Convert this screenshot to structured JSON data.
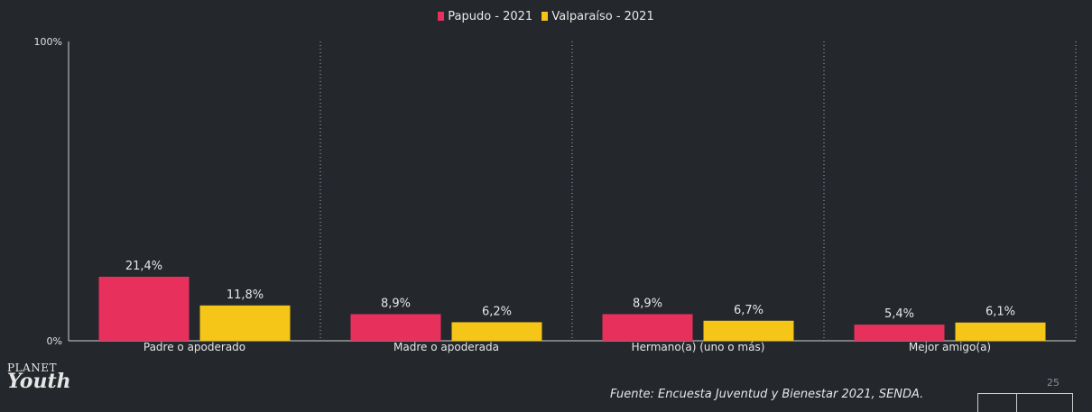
{
  "chart_data": {
    "type": "bar",
    "categories": [
      "Padre o apoderado",
      "Madre o apoderada",
      "Hermano(a) (uno o más)",
      "Mejor amigo(a)"
    ],
    "series": [
      {
        "name": "Papudo - 2021",
        "values": [
          21.4,
          8.9,
          8.9,
          5.4
        ],
        "labels": [
          "21,4%",
          "8,9%",
          "8,9%",
          "5,4%"
        ],
        "color": "#e8305d"
      },
      {
        "name": "Valparaíso - 2021",
        "values": [
          11.8,
          6.2,
          6.7,
          6.1
        ],
        "labels": [
          "11,8%",
          "6,2%",
          "6,7%",
          "6,1%"
        ],
        "color": "#f5c518"
      }
    ],
    "ylim": [
      0,
      100
    ],
    "ytick_labels": [
      "0%",
      "100%"
    ],
    "grid": "vertical dotted separators between categories",
    "legend_position": "top-center"
  },
  "footer": {
    "logo_top": "PLANET",
    "logo_bottom": "Youth",
    "source": "Fuente: Encuesta Juventud y Bienestar 2021, SENDA.",
    "page_number": "25"
  }
}
